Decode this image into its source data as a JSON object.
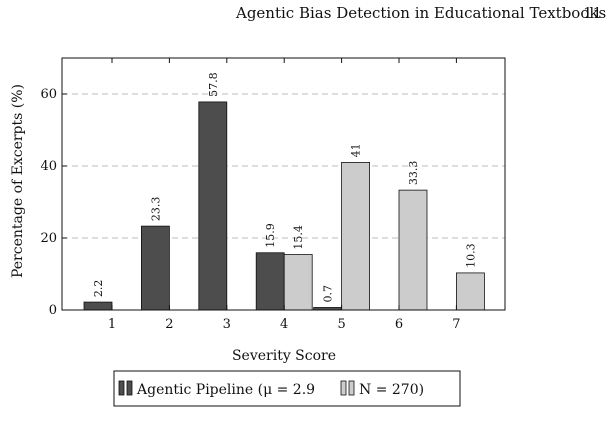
{
  "page": {
    "running_title": "Agentic Bias Detection in Educational Textbooks",
    "page_number": "11"
  },
  "chart_data": {
    "type": "bar",
    "title": "",
    "xlabel": "Severity Score",
    "ylabel": "Percentage of Excerpts (%)",
    "categories": [
      "1",
      "2",
      "3",
      "4",
      "5",
      "6",
      "7"
    ],
    "yticks": [
      0,
      20,
      40,
      60
    ],
    "ylim": [
      0,
      70
    ],
    "grid": "horizontal dashed",
    "legend": "below",
    "series": [
      {
        "name": "Agentic Pipeline (μ = 2.9",
        "color": "#4d4d4d",
        "values": [
          2.2,
          23.3,
          57.8,
          15.9,
          0.7,
          null,
          null
        ]
      },
      {
        "name": "N = 270)",
        "color": "#cccccc",
        "values": [
          null,
          null,
          null,
          15.4,
          41,
          33.3,
          10.3
        ]
      }
    ]
  }
}
